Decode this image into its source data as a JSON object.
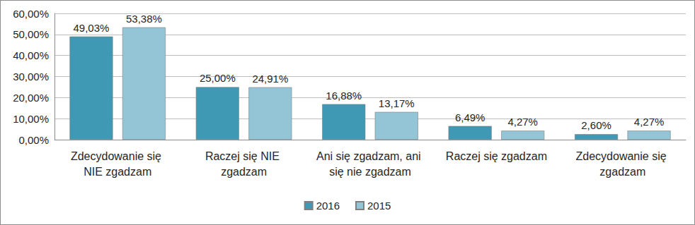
{
  "chart_data": {
    "type": "bar",
    "categories": [
      "Zdecydowanie się NIE zgadzam",
      "Raczej się NIE zgadzam",
      "Ani się zgadzam, ani się nie zgadzam",
      "Raczej się zgadzam",
      "Zdecydowanie się zgadzam"
    ],
    "series": [
      {
        "name": "2016",
        "color": "#3f98b4",
        "values": [
          49.03,
          25.0,
          16.88,
          6.49,
          2.6
        ],
        "value_labels": [
          "49,03%",
          "25,00%",
          "16,88%",
          "6,49%",
          "2,60%"
        ]
      },
      {
        "name": "2015",
        "color": "#93c5d7",
        "values": [
          53.38,
          24.91,
          13.17,
          4.27,
          4.27
        ],
        "value_labels": [
          "53,38%",
          "24,91%",
          "13,17%",
          "4,27%",
          "4,27%"
        ]
      }
    ],
    "ylim": [
      0,
      60
    ],
    "yticks": [
      {
        "value": 0,
        "label": "0,00%"
      },
      {
        "value": 10,
        "label": "10,00%"
      },
      {
        "value": 20,
        "label": "20,00%"
      },
      {
        "value": 30,
        "label": "30,00%"
      },
      {
        "value": 40,
        "label": "40,00%"
      },
      {
        "value": 50,
        "label": "50,00%"
      },
      {
        "value": 60,
        "label": "60,00%"
      }
    ],
    "grid": true,
    "legend": "bottom",
    "data_labels": true
  }
}
